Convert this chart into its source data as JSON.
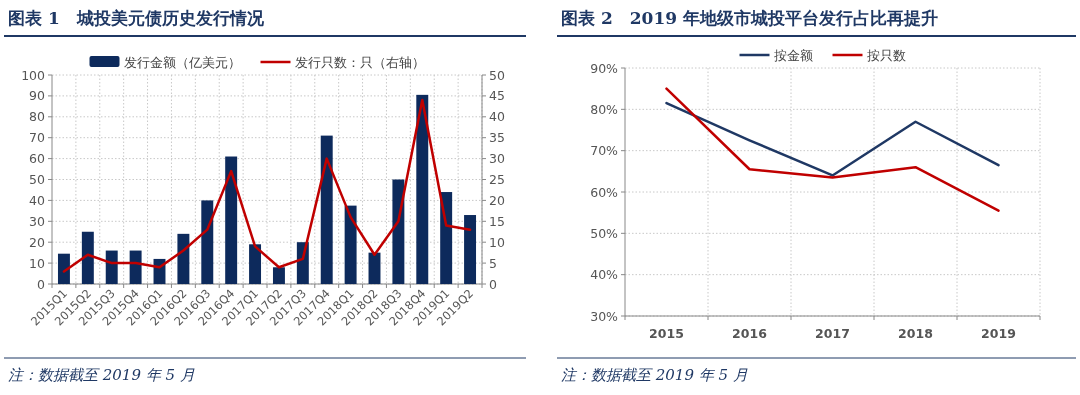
{
  "chart_data": [
    {
      "type": "bar",
      "title": "图表 1　城投美元债历史发行情况",
      "annotations": [
        "注：数据截至 2019 年 5 月"
      ],
      "categories": [
        "2015Q1",
        "2015Q2",
        "2015Q3",
        "2015Q4",
        "2016Q1",
        "2016Q2",
        "2016Q3",
        "2016Q4",
        "2017Q1",
        "2017Q2",
        "2017Q3",
        "2017Q4",
        "2018Q1",
        "2018Q2",
        "2018Q3",
        "2018Q4",
        "2019Q1",
        "2019Q2"
      ],
      "series": [
        {
          "name": "发行金额（亿美元）",
          "color": "#0d2a5c",
          "values": [
            14.5,
            25,
            16,
            16,
            12,
            24,
            40,
            61,
            19,
            8,
            20,
            71,
            37.5,
            15,
            50,
            90.5,
            44,
            33
          ]
        },
        {
          "name": "发行只数：只（右轴）",
          "type": "line",
          "axis": "y2",
          "color": "#c00000",
          "values": [
            3,
            7,
            5,
            5,
            4,
            8,
            13,
            27,
            9,
            4,
            6,
            30,
            16,
            7,
            15,
            44,
            14,
            13
          ]
        }
      ],
      "ylim": [
        0,
        100
      ],
      "yticks": [
        0,
        10,
        20,
        30,
        40,
        50,
        60,
        70,
        80,
        90,
        100
      ],
      "y2lim": [
        0,
        50
      ],
      "y2ticks": [
        0,
        5,
        10,
        15,
        20,
        25,
        30,
        35,
        40,
        45,
        50
      ],
      "grid": true,
      "legend": "top"
    },
    {
      "type": "line",
      "title": "图表 2　2019 年地级市城投平台发行占比再提升",
      "annotations": [
        "注：数据截至 2019 年 5 月"
      ],
      "categories": [
        "2015",
        "2016",
        "2017",
        "2018",
        "2019"
      ],
      "series": [
        {
          "name": "按金额",
          "color": "#1f3864",
          "values": [
            81.5,
            72.5,
            64,
            77,
            66.5
          ]
        },
        {
          "name": "按只数",
          "color": "#c00000",
          "values": [
            85,
            65.5,
            63.5,
            66,
            55.5
          ]
        }
      ],
      "ylim": [
        30,
        90
      ],
      "yticks": [
        {
          "value": 30,
          "label": "30%"
        },
        {
          "value": 40,
          "label": "40%"
        },
        {
          "value": 50,
          "label": "50%"
        },
        {
          "value": 60,
          "label": "60%"
        },
        {
          "value": 70,
          "label": "70%"
        },
        {
          "value": 80,
          "label": "80%"
        },
        {
          "value": 90,
          "label": "90%"
        }
      ],
      "grid": true,
      "legend": "top"
    }
  ]
}
